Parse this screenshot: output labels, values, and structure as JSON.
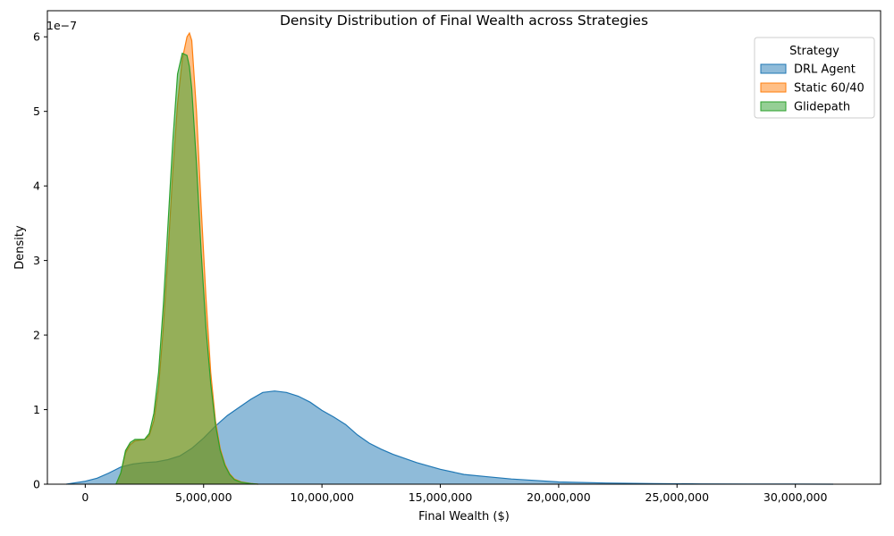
{
  "chart_data": {
    "type": "area",
    "title": "Density Distribution of Final Wealth across Strategies",
    "xlabel": "Final Wealth ($)",
    "ylabel": "Density",
    "y_offset_label": "1e−7",
    "xlim": [
      -1600000,
      33600000
    ],
    "ylim": [
      0,
      6.35
    ],
    "x_ticks": [
      0,
      5000000,
      10000000,
      15000000,
      20000000,
      25000000,
      30000000
    ],
    "x_tick_labels": [
      "0",
      "5,000,000",
      "10,000,000",
      "15,000,000",
      "20,000,000",
      "25,000,000",
      "30,000,000"
    ],
    "y_ticks": [
      0,
      1,
      2,
      3,
      4,
      5,
      6
    ],
    "y_tick_labels": [
      "0",
      "1",
      "2",
      "3",
      "4",
      "5",
      "6"
    ],
    "grid": false,
    "legend": {
      "title": "Strategy",
      "placement": "top-right"
    },
    "series": [
      {
        "name": "DRL Agent",
        "color": "#1f77b4",
        "x": [
          -800000,
          0,
          500000,
          1000000,
          1500000,
          2000000,
          2500000,
          3000000,
          3500000,
          4000000,
          4500000,
          5000000,
          5500000,
          6000000,
          6500000,
          7000000,
          7500000,
          8000000,
          8500000,
          9000000,
          9500000,
          10000000,
          10500000,
          11000000,
          11500000,
          12000000,
          12500000,
          13000000,
          14000000,
          15000000,
          16000000,
          17000000,
          18000000,
          19000000,
          20000000,
          22000000,
          24000000,
          26000000,
          28000000,
          30000000,
          31600000
        ],
        "y": [
          0,
          0.04,
          0.08,
          0.15,
          0.23,
          0.27,
          0.29,
          0.3,
          0.33,
          0.38,
          0.48,
          0.62,
          0.78,
          0.92,
          1.03,
          1.14,
          1.23,
          1.25,
          1.23,
          1.18,
          1.1,
          0.99,
          0.9,
          0.8,
          0.66,
          0.55,
          0.47,
          0.4,
          0.29,
          0.2,
          0.13,
          0.1,
          0.07,
          0.05,
          0.03,
          0.015,
          0.008,
          0.004,
          0.002,
          0.001,
          0
        ]
      },
      {
        "name": "Static 60/40",
        "color": "#ff7f0e",
        "x": [
          1300000,
          1500000,
          1700000,
          1900000,
          2100000,
          2300000,
          2500000,
          2700000,
          2900000,
          3100000,
          3300000,
          3500000,
          3700000,
          3900000,
          4100000,
          4300000,
          4400000,
          4500000,
          4700000,
          4900000,
          5100000,
          5300000,
          5500000,
          5700000,
          5900000,
          6100000,
          6300000,
          6600000,
          7000000,
          7300000
        ],
        "y": [
          0,
          0.15,
          0.42,
          0.53,
          0.58,
          0.59,
          0.6,
          0.65,
          0.85,
          1.3,
          2.1,
          3.1,
          4.2,
          5.1,
          5.7,
          6.0,
          6.05,
          5.95,
          5.0,
          3.7,
          2.5,
          1.5,
          0.85,
          0.48,
          0.27,
          0.14,
          0.07,
          0.03,
          0.01,
          0
        ]
      },
      {
        "name": "Glidepath",
        "color": "#2ca02c",
        "x": [
          1300000,
          1500000,
          1700000,
          1900000,
          2100000,
          2300000,
          2500000,
          2700000,
          2900000,
          3100000,
          3300000,
          3500000,
          3700000,
          3900000,
          4100000,
          4300000,
          4400000,
          4500000,
          4700000,
          4900000,
          5100000,
          5300000,
          5500000,
          5700000,
          5900000,
          6100000,
          6300000,
          6600000,
          7000000,
          7300000
        ],
        "y": [
          0,
          0.15,
          0.45,
          0.56,
          0.6,
          0.6,
          0.6,
          0.68,
          0.95,
          1.5,
          2.4,
          3.5,
          4.6,
          5.5,
          5.78,
          5.75,
          5.6,
          5.3,
          4.3,
          3.1,
          2.1,
          1.35,
          0.8,
          0.45,
          0.25,
          0.13,
          0.06,
          0.025,
          0.008,
          0
        ]
      }
    ]
  }
}
